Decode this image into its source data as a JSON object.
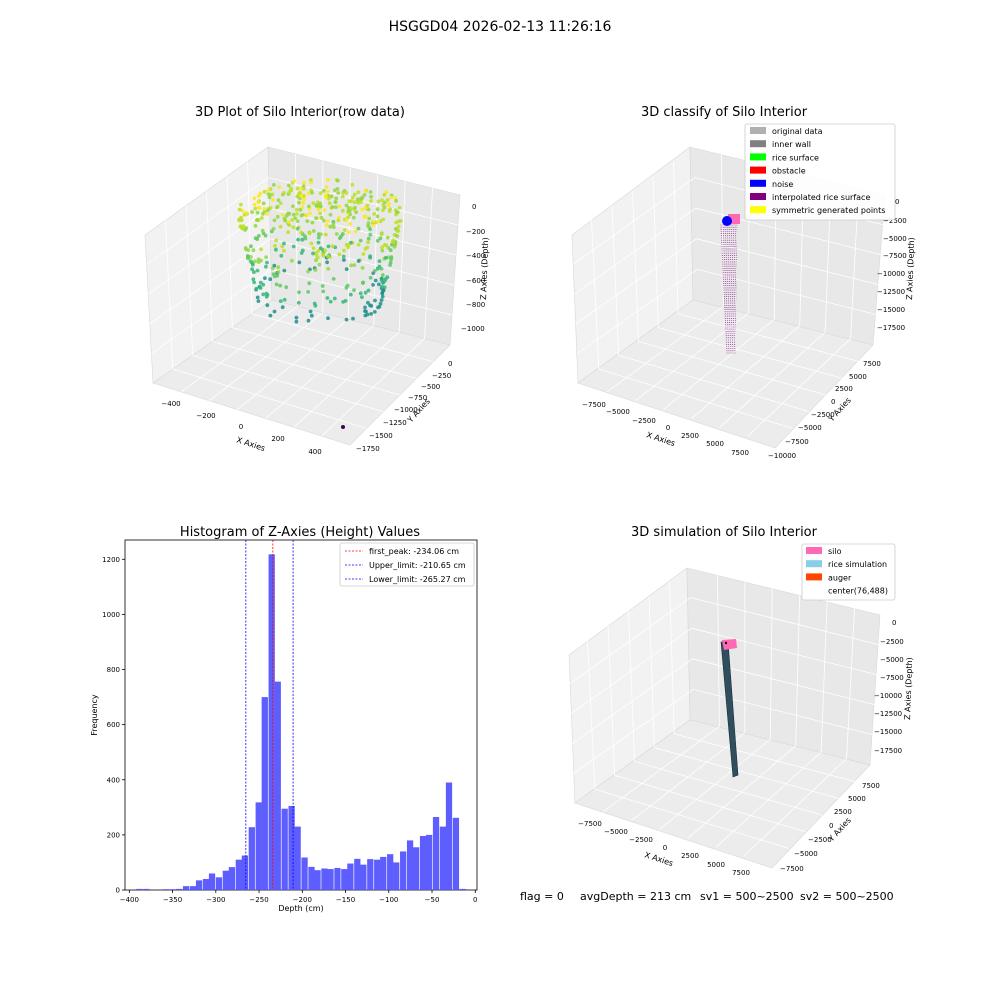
{
  "figure": {
    "suptitle": "HSGGD04 2026-02-13 11:26:16",
    "footer": {
      "flag": "flag = 0",
      "avg_depth": "avgDepth = 213 cm",
      "sv1": "sv1 = 500~2500",
      "sv2": "sv2 = 500~2500"
    }
  },
  "colors": {
    "histogram_bar": "#5555ff",
    "peak_line": "#ff0000",
    "limit_line": "#0000ff",
    "pane": "#f2f2f2",
    "silo": "#ff69b4",
    "rice_simulation": "#87ceeb",
    "auger": "#ff4500",
    "interpolated": "#800080",
    "noise": "#0000ff"
  },
  "panels": {
    "raw": {
      "title": "3D Plot of Silo Interior(row data)",
      "xlabel": "X Axies",
      "ylabel": "Y Axies",
      "zlabel": "Z Axies (Depth)",
      "xticks": [
        "−400",
        "−200",
        "0",
        "200",
        "400"
      ],
      "yticks": [
        "0",
        "−250",
        "−500",
        "−750",
        "−1000",
        "−1250",
        "−1500",
        "−1750"
      ],
      "zticks": [
        "0",
        "−200",
        "−400",
        "−600",
        "−800",
        "−1000"
      ]
    },
    "classify": {
      "title": "3D classify of Silo Interior",
      "xlabel": "X Axies",
      "ylabel": "Y Axies",
      "zlabel": "Z Axies (Depth)",
      "xticks": [
        "−7500",
        "−5000",
        "−2500",
        "0",
        "2500",
        "5000",
        "7500"
      ],
      "yticks": [
        "7500",
        "5000",
        "2500",
        "0",
        "−2500",
        "−5000",
        "−7500",
        "−10000"
      ],
      "zticks": [
        "0",
        "−2500",
        "−5000",
        "−7500",
        "−10000",
        "−12500",
        "−15000",
        "−17500"
      ],
      "legend": [
        {
          "label": "original data",
          "color": "#b0b0b0"
        },
        {
          "label": "inner wall",
          "color": "#808080"
        },
        {
          "label": "rice surface",
          "color": "#00ff00"
        },
        {
          "label": "obstacle",
          "color": "#ff0000"
        },
        {
          "label": "noise",
          "color": "#0000ff"
        },
        {
          "label": "interpolated rice surface",
          "color": "#800080"
        },
        {
          "label": "symmetric generated points",
          "color": "#ffff00"
        }
      ]
    },
    "simulation": {
      "title": "3D simulation of Silo Interior",
      "xlabel": "X Axies",
      "ylabel": "Y Axies",
      "zlabel": "Z Axies (Depth)",
      "xticks": [
        "−7500",
        "−5000",
        "−2500",
        "0",
        "2500",
        "5000",
        "7500"
      ],
      "yticks": [
        "7500",
        "5000",
        "2500",
        "0",
        "−2500",
        "−5000",
        "−7500"
      ],
      "zticks": [
        "0",
        "−2500",
        "−5000",
        "−7500",
        "−10000",
        "−12500",
        "−15000",
        "−17500"
      ],
      "legend": [
        {
          "label": "silo",
          "color": "#ff69b4"
        },
        {
          "label": "rice simulation",
          "color": "#87ceeb"
        },
        {
          "label": "auger",
          "color": "#ff4500"
        },
        {
          "label": "center(76,488)",
          "color": ""
        }
      ]
    }
  },
  "chart_data": [
    {
      "type": "scatter",
      "title": "3D Plot of Silo Interior(row data)",
      "xlabel": "X Axies",
      "ylabel": "Y Axies",
      "zlabel": "Z Axies (Depth)",
      "xlim": [
        -450,
        450
      ],
      "ylim": [
        -1800,
        0
      ],
      "zlim": [
        -1050,
        0
      ]
    },
    {
      "type": "scatter",
      "title": "3D classify of Silo Interior",
      "xlabel": "X Axies",
      "ylabel": "Y Axies",
      "zlabel": "Z Axies (Depth)",
      "series": [
        {
          "name": "original data"
        },
        {
          "name": "inner wall"
        },
        {
          "name": "rice surface"
        },
        {
          "name": "obstacle"
        },
        {
          "name": "noise"
        },
        {
          "name": "interpolated rice surface"
        },
        {
          "name": "symmetric generated points"
        }
      ]
    },
    {
      "type": "bar",
      "title": "Histogram of Z-Axies (Height) Values",
      "xlabel": "Depth (cm)",
      "ylabel": "Frequency",
      "xlim": [
        -405,
        2
      ],
      "ylim": [
        0,
        1270
      ],
      "xticks": [
        -400,
        -350,
        -300,
        -250,
        -200,
        -150,
        -100,
        -50,
        0
      ],
      "yticks": [
        0,
        200,
        400,
        600,
        800,
        1000,
        1200
      ],
      "bin_width": 7.6,
      "bins": [
        {
          "x": -392,
          "y": 4
        },
        {
          "x": -384,
          "y": 4
        },
        {
          "x": -361,
          "y": 3
        },
        {
          "x": -353,
          "y": 3
        },
        {
          "x": -346,
          "y": 4
        },
        {
          "x": -338,
          "y": 14
        },
        {
          "x": -330,
          "y": 14
        },
        {
          "x": -323,
          "y": 35
        },
        {
          "x": -315,
          "y": 40
        },
        {
          "x": -308,
          "y": 60
        },
        {
          "x": -300,
          "y": 46
        },
        {
          "x": -292,
          "y": 70
        },
        {
          "x": -285,
          "y": 83
        },
        {
          "x": -277,
          "y": 110
        },
        {
          "x": -270,
          "y": 125
        },
        {
          "x": -262,
          "y": 228
        },
        {
          "x": -254,
          "y": 318
        },
        {
          "x": -247,
          "y": 700
        },
        {
          "x": -239,
          "y": 1218
        },
        {
          "x": -232,
          "y": 756
        },
        {
          "x": -224,
          "y": 295
        },
        {
          "x": -216,
          "y": 305
        },
        {
          "x": -209,
          "y": 230
        },
        {
          "x": -201,
          "y": 118
        },
        {
          "x": -193,
          "y": 84
        },
        {
          "x": -186,
          "y": 72
        },
        {
          "x": -178,
          "y": 78
        },
        {
          "x": -171,
          "y": 76
        },
        {
          "x": -163,
          "y": 80
        },
        {
          "x": -155,
          "y": 76
        },
        {
          "x": -148,
          "y": 96
        },
        {
          "x": -140,
          "y": 113
        },
        {
          "x": -133,
          "y": 92
        },
        {
          "x": -125,
          "y": 112
        },
        {
          "x": -117,
          "y": 110
        },
        {
          "x": -110,
          "y": 120
        },
        {
          "x": -102,
          "y": 130
        },
        {
          "x": -95,
          "y": 100
        },
        {
          "x": -87,
          "y": 140
        },
        {
          "x": -79,
          "y": 180
        },
        {
          "x": -72,
          "y": 155
        },
        {
          "x": -64,
          "y": 196
        },
        {
          "x": -57,
          "y": 200
        },
        {
          "x": -49,
          "y": 265
        },
        {
          "x": -41,
          "y": 230
        },
        {
          "x": -34,
          "y": 390
        },
        {
          "x": -26,
          "y": 262
        },
        {
          "x": -18,
          "y": 4
        }
      ],
      "vlines": [
        {
          "name": "first_peak: -234.06 cm",
          "x": -234.06,
          "color": "#ff0000"
        },
        {
          "name": "Upper_limit: -210.65 cm",
          "x": -210.65,
          "color": "#0000ff"
        },
        {
          "name": "Lower_limit: -265.27 cm",
          "x": -265.27,
          "color": "#0000ff"
        }
      ],
      "legend_position": "top-right"
    },
    {
      "type": "scatter",
      "title": "3D simulation of Silo Interior",
      "xlabel": "X Axies",
      "ylabel": "Y Axies",
      "zlabel": "Z Axies (Depth)",
      "series": [
        {
          "name": "silo"
        },
        {
          "name": "rice simulation"
        },
        {
          "name": "auger"
        }
      ]
    }
  ]
}
